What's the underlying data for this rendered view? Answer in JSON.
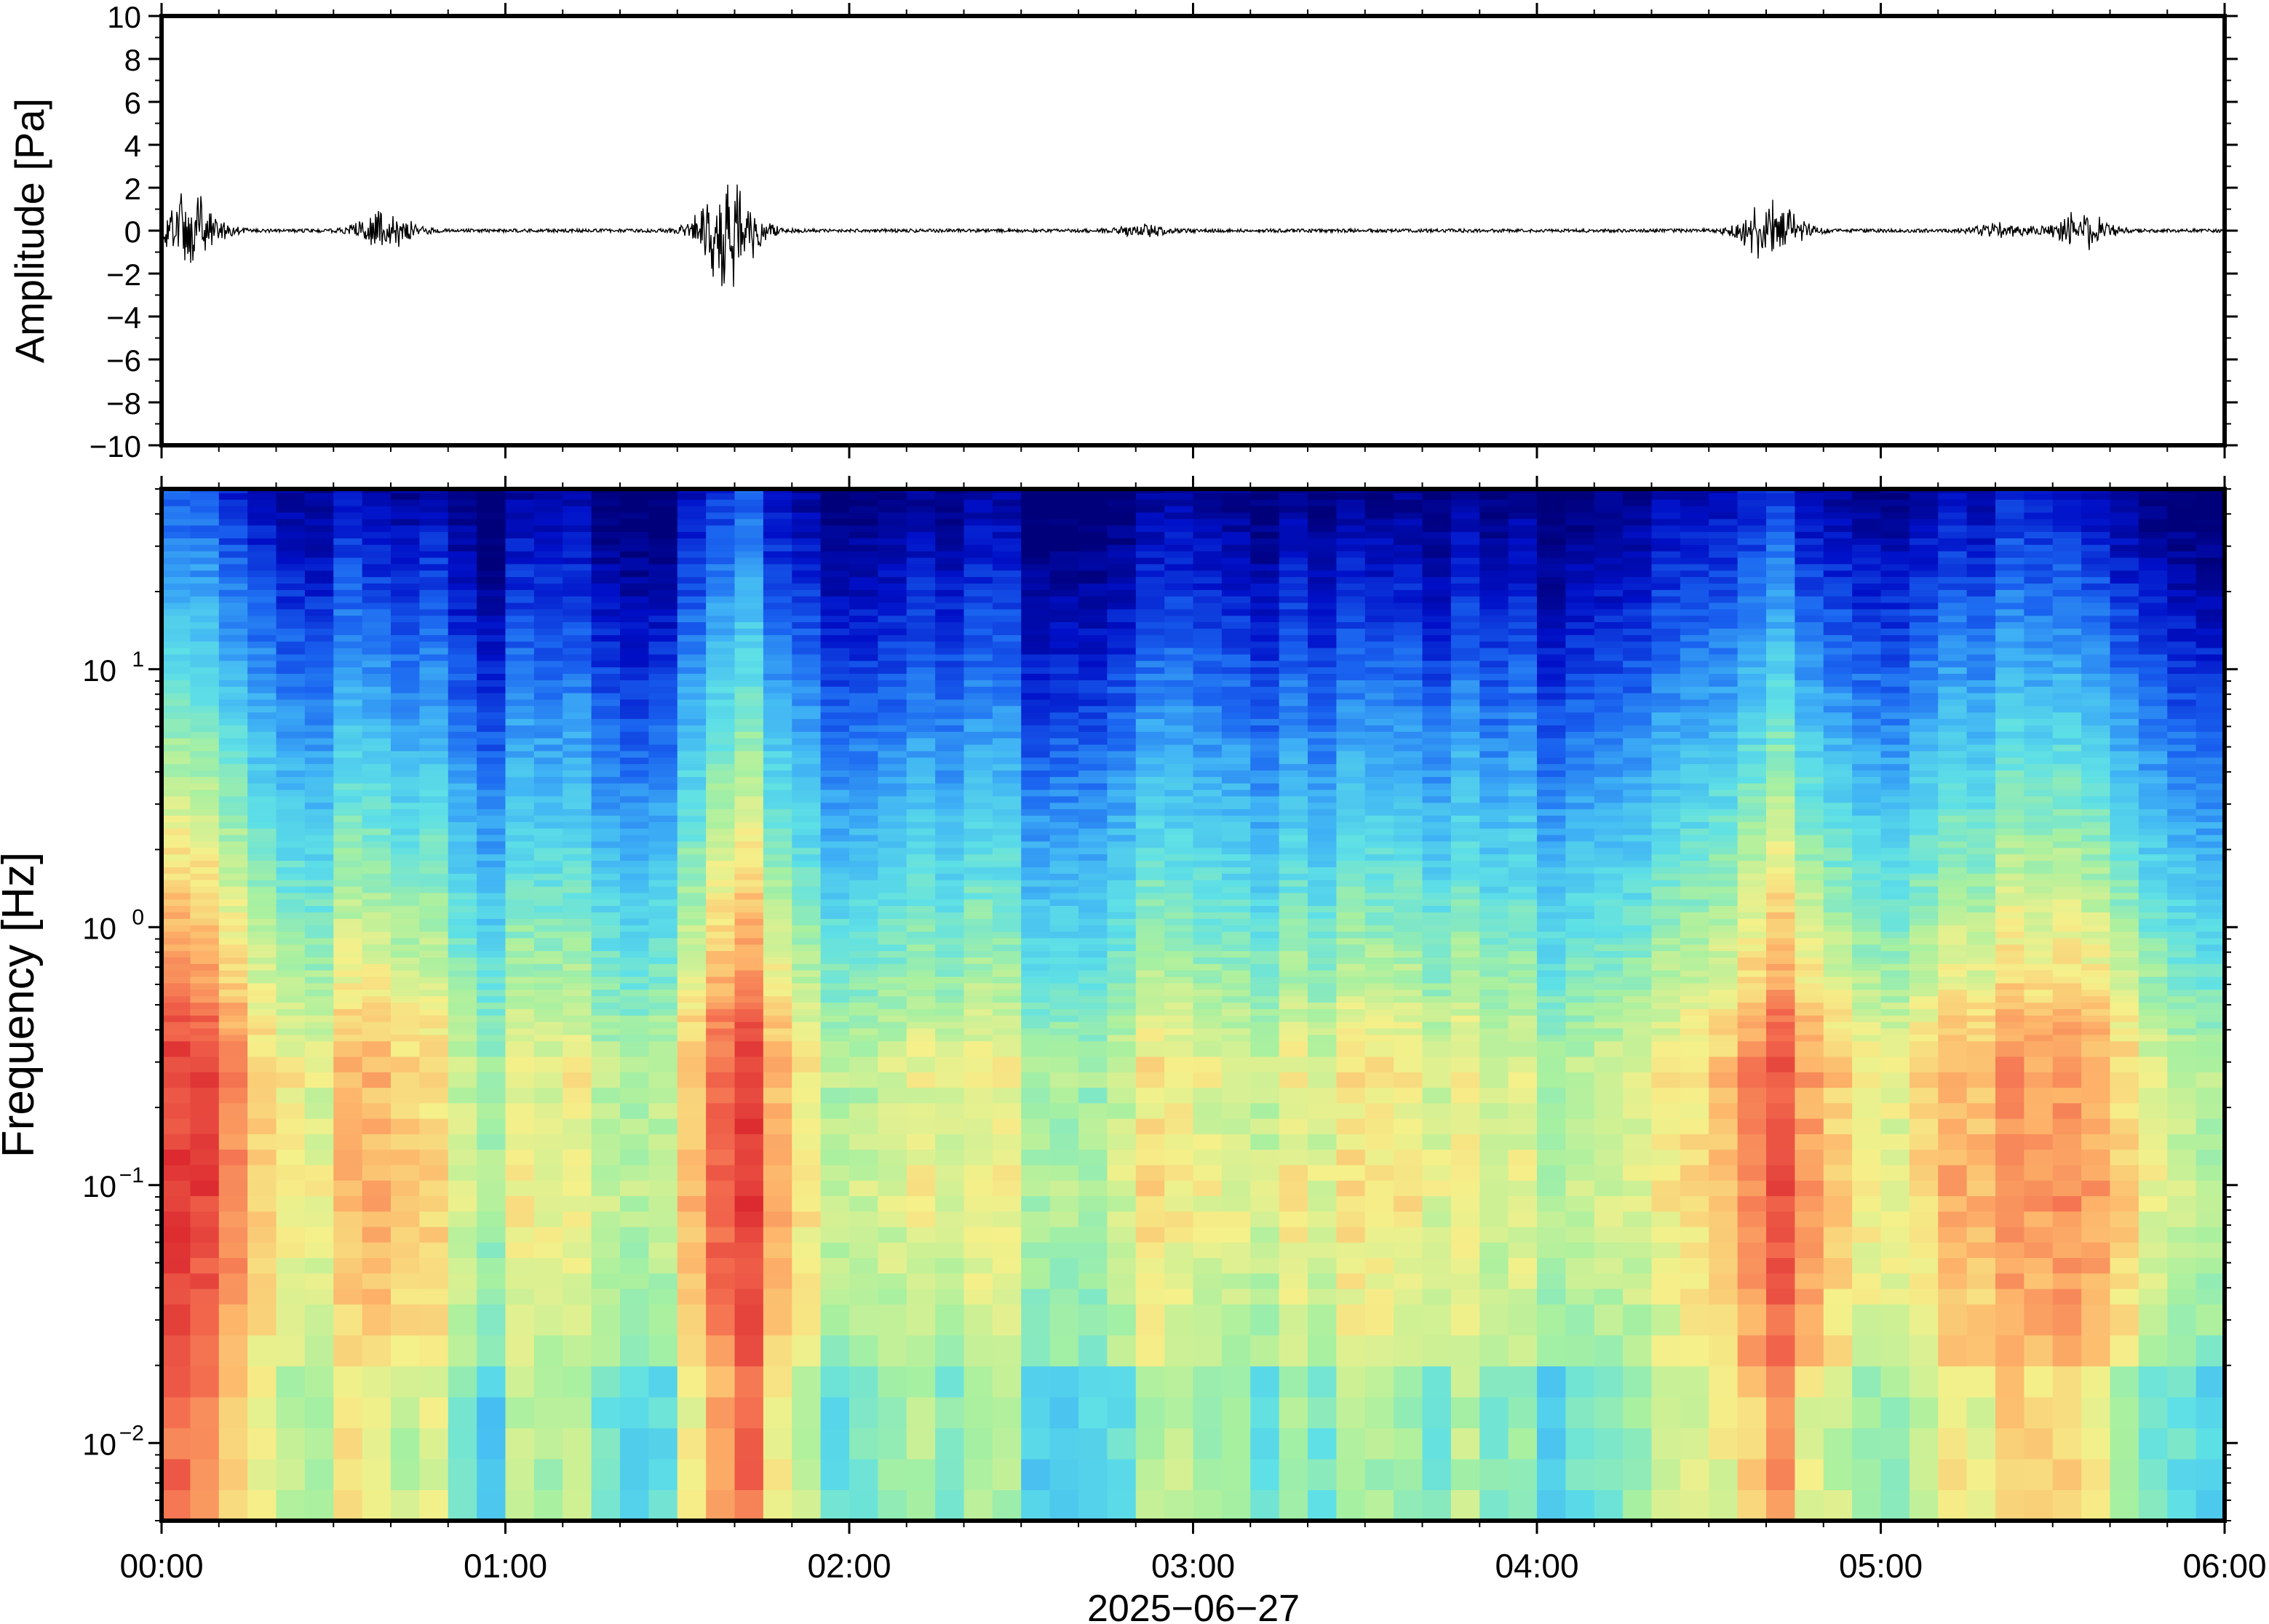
{
  "chart_data": [
    {
      "type": "line",
      "panel": "waveform",
      "ylabel": "Amplitude [Pa]",
      "ylim": [
        -10,
        10
      ],
      "yticks": [
        10,
        8,
        6,
        4,
        2,
        0,
        -2,
        -4,
        -6,
        -8,
        -10
      ],
      "ytick_labels": [
        "10",
        "8",
        "6",
        "4",
        "2",
        "0",
        "−2",
        "−4",
        "−6",
        "−8",
        "−10"
      ],
      "xlim_hours": [
        0,
        6
      ],
      "grid": false,
      "line_color": "#000000",
      "bursts": [
        {
          "t": 0.08,
          "amp": 2.0
        },
        {
          "t": 0.65,
          "amp": 0.9
        },
        {
          "t": 1.65,
          "amp": 3.0
        },
        {
          "t": 2.85,
          "amp": 0.3
        },
        {
          "t": 4.68,
          "amp": 1.7
        },
        {
          "t": 5.35,
          "amp": 0.4
        },
        {
          "t": 5.58,
          "amp": 1.0
        }
      ],
      "noise_floor": 0.08
    },
    {
      "type": "heatmap",
      "panel": "spectrogram",
      "ylabel": "Frequency [Hz]",
      "yscale": "log",
      "ylim": [
        0.005,
        50
      ],
      "yticks": [
        0.01,
        0.1,
        1,
        10
      ],
      "ytick_labels": [
        {
          "base": "10",
          "exp": "−2"
        },
        {
          "base": "10",
          "exp": "−1"
        },
        {
          "base": "10",
          "exp": "0"
        },
        {
          "base": "10",
          "exp": "1"
        }
      ],
      "xlabel": "2025−06−27",
      "xlim_hours": [
        0,
        6
      ],
      "xticks": [
        "00:00",
        "01:00",
        "02:00",
        "03:00",
        "04:00",
        "05:00",
        "06:00"
      ],
      "colormap": [
        "#00007a",
        "#0010c8",
        "#1a63f0",
        "#3fb2f5",
        "#5ee0e6",
        "#a8f0a0",
        "#f5f08a",
        "#fdb46a",
        "#f36a4e",
        "#dc2a30"
      ],
      "activity": [
        {
          "t": 0.08,
          "strength": 1.0,
          "width": 0.13
        },
        {
          "t": 0.65,
          "strength": 0.65,
          "width": 0.09
        },
        {
          "t": 1.68,
          "strength": 1.0,
          "width": 0.11
        },
        {
          "t": 2.85,
          "strength": 0.35,
          "width": 0.05
        },
        {
          "t": 3.55,
          "strength": 0.35,
          "width": 0.18
        },
        {
          "t": 4.72,
          "strength": 0.95,
          "width": 0.13
        },
        {
          "t": 5.3,
          "strength": 0.55,
          "width": 0.15
        },
        {
          "t": 5.62,
          "strength": 0.7,
          "width": 0.12
        }
      ]
    }
  ]
}
